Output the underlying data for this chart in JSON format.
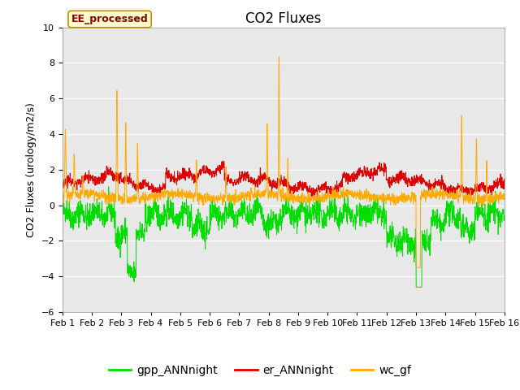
{
  "title": "CO2 Fluxes",
  "ylabel": "CO2 Fluxes (urology/m2/s)",
  "ylim": [
    -6,
    10
  ],
  "yticks": [
    -6,
    -4,
    -2,
    0,
    2,
    4,
    6,
    8,
    10
  ],
  "x_tick_labels": [
    "Feb 1",
    "Feb 2",
    "Feb 3",
    "Feb 4",
    "Feb 5",
    "Feb 6",
    "Feb 7",
    "Feb 8",
    "Feb 9",
    "Feb 10",
    "Feb 11",
    "Feb 12",
    "Feb 13",
    "Feb 14",
    "Feb 15",
    "Feb 16"
  ],
  "n_points": 2000,
  "colors": {
    "gpp": "#00dd00",
    "er": "#dd0000",
    "wc": "#ffaa00"
  },
  "legend_labels": [
    "gpp_ANNnight",
    "er_ANNnight",
    "wc_gf"
  ],
  "annotation_text": "EE_processed",
  "annotation_bbox": {
    "facecolor": "#ffffcc",
    "edgecolor": "#cc8800"
  },
  "background_color": "#e8e8e8",
  "title_fontsize": 12,
  "axis_fontsize": 9,
  "tick_fontsize": 8,
  "legend_fontsize": 10
}
